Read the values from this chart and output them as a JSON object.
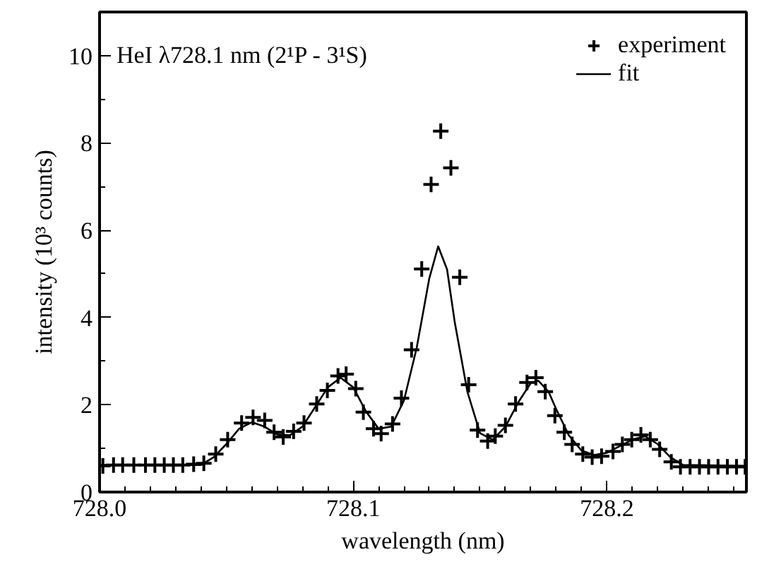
{
  "chart_data": {
    "type": "scatter",
    "xlabel": "wavelength (nm)",
    "ylabel": "intensity (10³ counts)",
    "annotations": [
      "HeI λ728.1 nm (2¹P - 3¹S)"
    ],
    "xlim": [
      728.0,
      728.255
    ],
    "ylim": [
      0,
      11
    ],
    "xticks": [
      {
        "value": 728.0,
        "label": "728.0"
      },
      {
        "value": 728.1,
        "label": "728.1"
      },
      {
        "value": 728.2,
        "label": "728.2"
      },
      {
        "value": 728.01,
        "label": null
      },
      {
        "value": 728.02,
        "label": null
      },
      {
        "value": 728.03,
        "label": null
      },
      {
        "value": 728.04,
        "label": null
      },
      {
        "value": 728.05,
        "label": null
      },
      {
        "value": 728.06,
        "label": null
      },
      {
        "value": 728.07,
        "label": null
      },
      {
        "value": 728.08,
        "label": null
      },
      {
        "value": 728.09,
        "label": null
      },
      {
        "value": 728.11,
        "label": null
      },
      {
        "value": 728.12,
        "label": null
      },
      {
        "value": 728.13,
        "label": null
      },
      {
        "value": 728.14,
        "label": null
      },
      {
        "value": 728.15,
        "label": null
      },
      {
        "value": 728.16,
        "label": null
      },
      {
        "value": 728.17,
        "label": null
      },
      {
        "value": 728.18,
        "label": null
      },
      {
        "value": 728.19,
        "label": null
      },
      {
        "value": 728.21,
        "label": null
      },
      {
        "value": 728.22,
        "label": null
      },
      {
        "value": 728.23,
        "label": null
      },
      {
        "value": 728.24,
        "label": null
      },
      {
        "value": 728.25,
        "label": null
      }
    ],
    "yticks": [
      0,
      2,
      4,
      6,
      8,
      10,
      {
        "value": 1,
        "label": null
      },
      {
        "value": 3,
        "label": null
      },
      {
        "value": 5,
        "label": null
      },
      {
        "value": 7,
        "label": null
      },
      {
        "value": 9,
        "label": null
      }
    ],
    "grid": false,
    "legend": "top right",
    "series": [
      {
        "name": "experiment",
        "marker": "cross",
        "color": "#000000",
        "x": [
          728.0013,
          728.0055,
          728.0091,
          728.0135,
          728.0181,
          728.0218,
          728.0255,
          728.0291,
          728.0328,
          728.0371,
          728.0411,
          728.0458,
          728.0505,
          728.056,
          728.0605,
          728.0651,
          728.0688,
          728.0724,
          728.0765,
          728.0806,
          728.0856,
          728.0898,
          728.094,
          728.0972,
          728.101,
          728.104,
          728.108,
          728.111,
          728.1155,
          728.119,
          728.123,
          728.127,
          728.1307,
          728.1345,
          728.1385,
          728.142,
          728.1455,
          728.149,
          728.153,
          728.156,
          728.16,
          728.164,
          728.1685,
          728.172,
          728.1757,
          728.1795,
          728.1832,
          728.1863,
          728.1905,
          728.1942,
          728.1979,
          728.2024,
          728.2061,
          728.2098,
          728.2134,
          728.2171,
          728.2208,
          728.2254,
          728.229,
          728.2328,
          728.2365,
          728.2401,
          728.2438,
          728.2475,
          728.2511,
          728.2545
        ],
        "values": [
          0.6,
          0.62,
          0.62,
          0.62,
          0.62,
          0.62,
          0.62,
          0.62,
          0.62,
          0.64,
          0.66,
          0.87,
          1.2,
          1.58,
          1.71,
          1.64,
          1.37,
          1.26,
          1.39,
          1.58,
          2.02,
          2.33,
          2.66,
          2.7,
          2.37,
          1.83,
          1.45,
          1.34,
          1.56,
          2.15,
          3.26,
          5.11,
          7.05,
          8.27,
          7.43,
          4.92,
          2.46,
          1.42,
          1.17,
          1.28,
          1.53,
          2.02,
          2.51,
          2.62,
          2.3,
          1.75,
          1.37,
          1.09,
          0.87,
          0.8,
          0.82,
          0.93,
          1.09,
          1.2,
          1.31,
          1.2,
          0.98,
          0.69,
          0.58,
          0.58,
          0.58,
          0.58,
          0.58,
          0.58,
          0.58,
          0.58
        ]
      },
      {
        "name": "fit",
        "type": "line",
        "line_style": "solid",
        "color": "#000000",
        "x": [
          728.0,
          728.04,
          728.045,
          728.05,
          728.055,
          728.06,
          728.065,
          728.07,
          728.075,
          728.08,
          728.085,
          728.09,
          728.095,
          728.1,
          728.105,
          728.11,
          728.115,
          728.12,
          728.125,
          728.13,
          728.1335,
          728.137,
          728.14,
          728.145,
          728.15,
          728.155,
          728.16,
          728.165,
          728.17,
          728.173,
          728.177,
          728.18,
          728.185,
          728.19,
          728.195,
          728.2,
          728.205,
          728.21,
          728.215,
          728.22,
          728.225,
          728.23,
          728.255
        ],
        "values": [
          0.62,
          0.62,
          0.8,
          1.1,
          1.45,
          1.6,
          1.5,
          1.32,
          1.3,
          1.5,
          1.95,
          2.4,
          2.62,
          2.4,
          1.85,
          1.45,
          1.5,
          2.1,
          3.3,
          4.9,
          5.63,
          5.1,
          3.9,
          2.3,
          1.35,
          1.2,
          1.5,
          2.05,
          2.5,
          2.55,
          2.3,
          1.9,
          1.3,
          0.95,
          0.85,
          0.9,
          1.05,
          1.2,
          1.28,
          1.1,
          0.8,
          0.62,
          0.6
        ]
      }
    ]
  }
}
